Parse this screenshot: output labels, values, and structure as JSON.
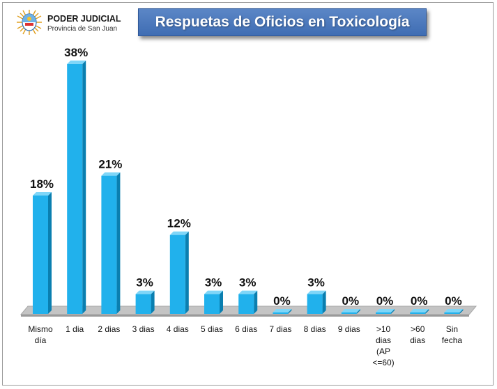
{
  "header": {
    "org_name": "PODER JUDICIAL",
    "org_sub": "Provincia de San Juan",
    "title": "Respuetas de Oficios en Toxicología"
  },
  "colors": {
    "bar_front": "#21b1ec",
    "bar_side": "#0a7fb0",
    "bar_top": "#7fd6f8",
    "floor": "#c4c4c4",
    "title_bg": "#4a77bd"
  },
  "chart_data": {
    "type": "bar",
    "title": "Respuetas de Oficios en Toxicología",
    "xlabel": "",
    "ylabel": "",
    "categories": [
      "Mismo día",
      "1 dia",
      "2 dias",
      "3 dias",
      "4 dias",
      "5 dias",
      "6 dias",
      "7 dias",
      "8 dias",
      "9 dias",
      ">10 dias (AP <=60)",
      ">60 dias",
      "Sin fecha"
    ],
    "category_lines": [
      [
        "Mismo",
        "día"
      ],
      [
        "1 dia"
      ],
      [
        "2 dias"
      ],
      [
        "3 dias"
      ],
      [
        "4 dias"
      ],
      [
        "5 dias"
      ],
      [
        "6 dias"
      ],
      [
        "7 dias"
      ],
      [
        "8 dias"
      ],
      [
        "9 dias"
      ],
      [
        ">10",
        "dias",
        "(AP",
        "<=60)"
      ],
      [
        ">60",
        "dias"
      ],
      [
        "Sin",
        "fecha"
      ]
    ],
    "values": [
      18,
      38,
      21,
      3,
      12,
      3,
      3,
      0,
      3,
      0,
      0,
      0,
      0
    ],
    "data_labels": [
      "18%",
      "38%",
      "21%",
      "3%",
      "12%",
      "3%",
      "3%",
      "0%",
      "3%",
      "0%",
      "0%",
      "0%",
      "0%"
    ],
    "unit": "%",
    "ylim": [
      0,
      40
    ],
    "grid": false,
    "legend": "none"
  }
}
